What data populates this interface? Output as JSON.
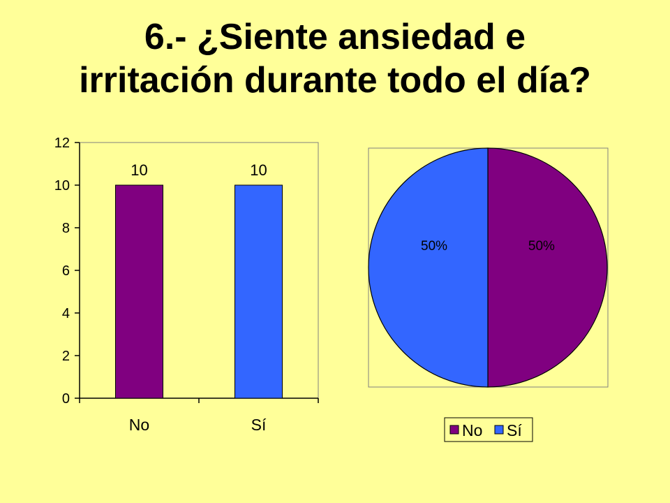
{
  "slide": {
    "title_line1": "6.- ¿Siente ansiedad e",
    "title_line2": "irritación durante todo el día?",
    "background": "#FFFF99"
  },
  "chart_data": [
    {
      "type": "bar",
      "categories": [
        "No",
        "Sí"
      ],
      "values": [
        10,
        10
      ],
      "data_labels": [
        "10",
        "10"
      ],
      "colors": [
        "#800080",
        "#3366FF"
      ],
      "ylim": [
        0,
        12
      ],
      "yticks": [
        0,
        2,
        4,
        6,
        8,
        10,
        12
      ],
      "grid": false
    },
    {
      "type": "pie",
      "labels": [
        "No",
        "Sí"
      ],
      "values": [
        50,
        50
      ],
      "data_labels": [
        "50%",
        "50%"
      ],
      "colors": [
        "#800080",
        "#3366FF"
      ],
      "legend": {
        "placement": "bottom",
        "entries": [
          "No",
          "Sí"
        ]
      }
    }
  ]
}
